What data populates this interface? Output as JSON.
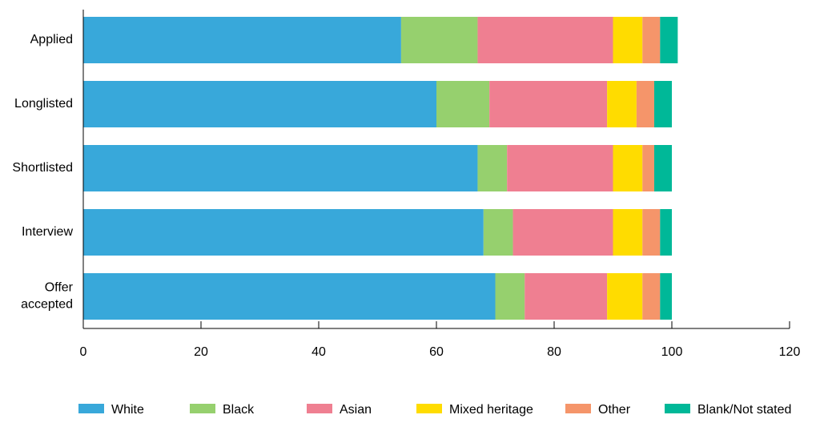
{
  "chart_data": {
    "type": "bar",
    "orientation": "horizontal",
    "stacked": true,
    "categories": [
      "Applied",
      "Longlisted",
      "Shortlisted",
      "Interview",
      "Offer accepted"
    ],
    "category_lines": [
      [
        "Applied"
      ],
      [
        "Longlisted"
      ],
      [
        "Shortlisted"
      ],
      [
        "Interview"
      ],
      [
        "Offer",
        "accepted"
      ]
    ],
    "series": [
      {
        "name": "White",
        "color": "#38A8DA",
        "values": [
          54,
          60,
          67,
          68,
          70
        ]
      },
      {
        "name": "Black",
        "color": "#96D06E",
        "values": [
          13,
          9,
          5,
          5,
          5
        ]
      },
      {
        "name": "Asian",
        "color": "#EF7F91",
        "values": [
          23,
          20,
          18,
          17,
          14
        ]
      },
      {
        "name": "Mixed heritage",
        "color": "#FFDC00",
        "values": [
          5,
          5,
          5,
          5,
          6
        ]
      },
      {
        "name": "Other",
        "color": "#F5956A",
        "values": [
          3,
          3,
          2,
          3,
          3
        ]
      },
      {
        "name": "Blank/Not stated",
        "color": "#00B898",
        "values": [
          3,
          3,
          3,
          2,
          2
        ]
      }
    ],
    "xlim": [
      0,
      120
    ],
    "xticks": [
      0,
      20,
      40,
      60,
      80,
      100,
      120
    ],
    "grid": false,
    "legend_position": "bottom",
    "title": "",
    "xlabel": "",
    "ylabel": ""
  }
}
